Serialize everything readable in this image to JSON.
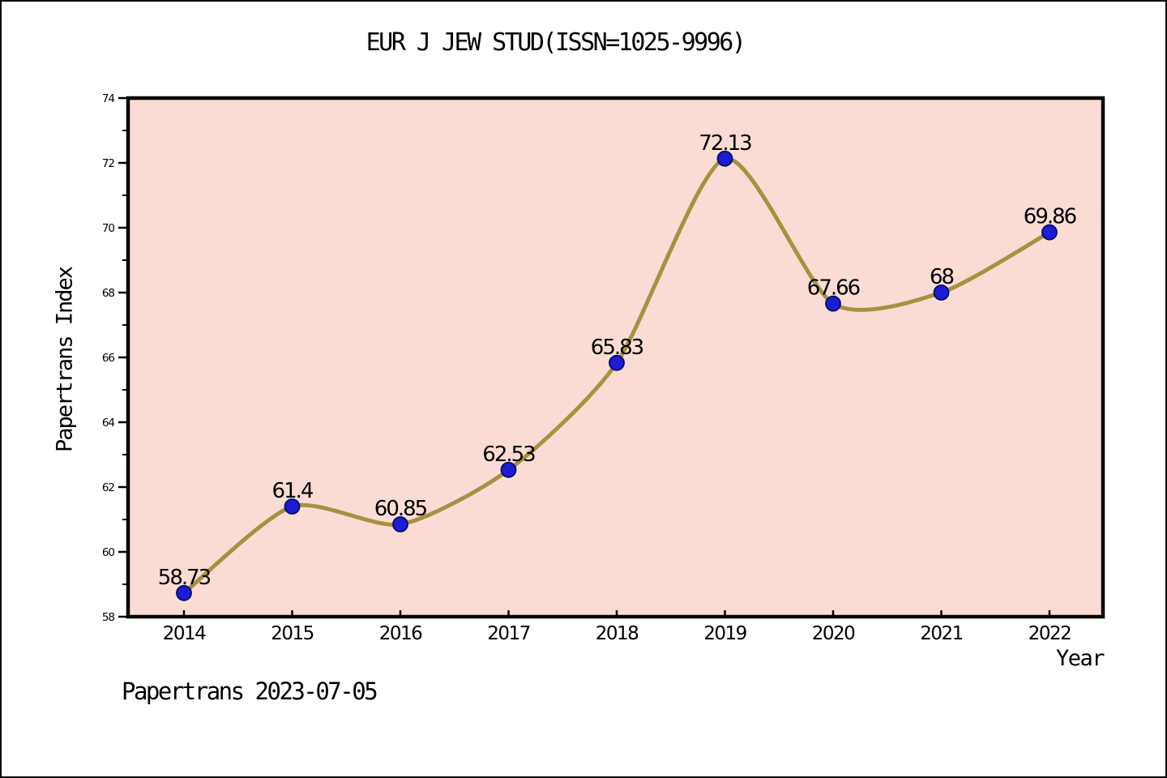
{
  "title": "EUR J JEW STUD(ISSN=1025-9996)",
  "footer": "Papertrans 2023-07-05",
  "chart_data": {
    "type": "line",
    "title": "EUR J JEW STUD(ISSN=1025-9996)",
    "xlabel": "Year",
    "ylabel": "Papertrans Index",
    "categories": [
      "2014",
      "2015",
      "2016",
      "2017",
      "2018",
      "2019",
      "2020",
      "2021",
      "2022"
    ],
    "values": [
      58.73,
      61.4,
      60.85,
      62.53,
      65.83,
      72.13,
      67.66,
      68,
      69.86
    ],
    "data_labels": [
      "58.73",
      "61.4",
      "60.85",
      "62.53",
      "65.83",
      "72.13",
      "67.66",
      "68",
      "69.86"
    ],
    "ylim": [
      58,
      74
    ],
    "yticks": [
      58,
      60,
      62,
      64,
      66,
      68,
      70,
      72,
      74
    ],
    "y_minor_ticks": [
      59,
      61,
      63,
      65,
      67,
      69,
      71,
      73
    ],
    "grid": false,
    "legend": null,
    "smooth_line": true,
    "colors": {
      "plot_bg": "#fbdcd5",
      "line": "#a5913f",
      "marker_fill": "#1c1cd6",
      "marker_edge": "#000d66",
      "text": "#000000",
      "frame": "#000000"
    }
  }
}
